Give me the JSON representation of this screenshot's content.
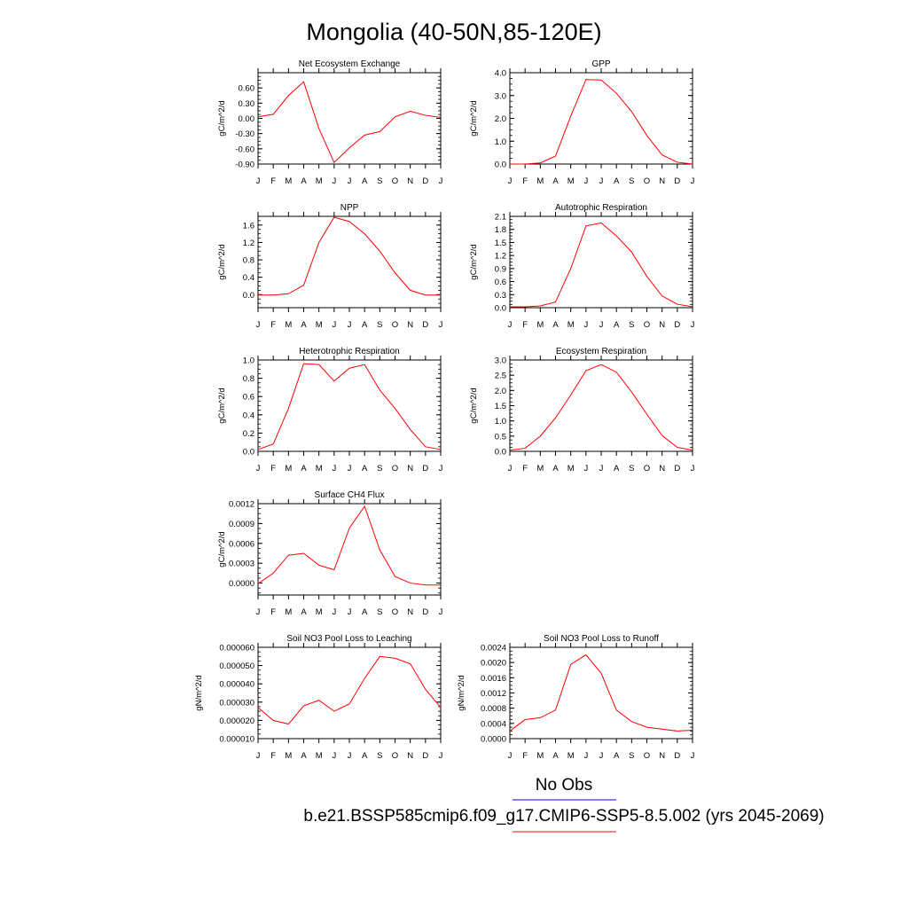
{
  "page_title": "Mongolia (40-50N,85-120E)",
  "legend": {
    "obs_label": "No Obs",
    "obs_color": "#0000ff",
    "model_label": "b.e21.BSSP585cmip6.f09_g17.CMIP6-SSP5-8.5.002 (yrs 2045-2069)",
    "model_color": "#ff0000"
  },
  "month_labels": [
    "J",
    "F",
    "M",
    "A",
    "M",
    "J",
    "J",
    "A",
    "S",
    "O",
    "N",
    "D",
    "J"
  ],
  "chart_data": [
    {
      "type": "line",
      "title": "Net Ecosystem Exchange",
      "ylabel": "gC/m^2/d",
      "ylim": [
        -0.9,
        0.9
      ],
      "yticks": [
        "-0.90",
        "-0.60",
        "-0.30",
        "0.00",
        "0.30",
        "0.60"
      ],
      "ytick_values": [
        -0.9,
        -0.6,
        -0.3,
        0.0,
        0.3,
        0.6
      ],
      "x": [
        "J",
        "F",
        "M",
        "A",
        "M",
        "J",
        "J",
        "A",
        "S",
        "O",
        "N",
        "D",
        "J"
      ],
      "series": [
        {
          "values": [
            0.03,
            0.08,
            0.45,
            0.72,
            -0.2,
            -0.87,
            -0.58,
            -0.33,
            -0.26,
            0.03,
            0.14,
            0.06,
            0.02
          ]
        }
      ]
    },
    {
      "type": "line",
      "title": "GPP",
      "ylabel": "gC/m^2/d",
      "ylim": [
        0,
        4.0
      ],
      "yticks": [
        "0.0",
        "1.0",
        "2.0",
        "3.0",
        "4.0"
      ],
      "ytick_values": [
        0,
        1,
        2,
        3,
        4
      ],
      "x": [
        "J",
        "F",
        "M",
        "A",
        "M",
        "J",
        "J",
        "A",
        "S",
        "O",
        "N",
        "D",
        "J"
      ],
      "series": [
        {
          "values": [
            0.0,
            0.0,
            0.05,
            0.35,
            2.1,
            3.7,
            3.68,
            3.1,
            2.3,
            1.25,
            0.4,
            0.08,
            0.0
          ]
        }
      ]
    },
    {
      "type": "line",
      "title": "NPP",
      "ylabel": "gC/m^2/d",
      "ylim": [
        -0.3,
        1.8
      ],
      "yticks": [
        "0.0",
        "0.4",
        "0.8",
        "1.2",
        "1.6"
      ],
      "ytick_values": [
        0.0,
        0.4,
        0.8,
        1.2,
        1.6
      ],
      "x": [
        "J",
        "F",
        "M",
        "A",
        "M",
        "J",
        "J",
        "A",
        "S",
        "O",
        "N",
        "D",
        "J"
      ],
      "series": [
        {
          "values": [
            -0.01,
            -0.01,
            0.02,
            0.22,
            1.2,
            1.78,
            1.68,
            1.4,
            1.0,
            0.5,
            0.1,
            -0.01,
            -0.01
          ]
        }
      ]
    },
    {
      "type": "line",
      "title": "Autotrophic Respiration",
      "ylabel": "gC/m^2/d",
      "ylim": [
        0,
        2.1
      ],
      "yticks": [
        "0.0",
        "0.3",
        "0.6",
        "0.9",
        "1.2",
        "1.5",
        "1.8",
        "2.1"
      ],
      "ytick_values": [
        0,
        0.3,
        0.6,
        0.9,
        1.2,
        1.5,
        1.8,
        2.1
      ],
      "x": [
        "J",
        "F",
        "M",
        "A",
        "M",
        "J",
        "J",
        "A",
        "S",
        "O",
        "N",
        "D",
        "J"
      ],
      "series": [
        {
          "values": [
            0.02,
            0.02,
            0.04,
            0.13,
            0.9,
            1.88,
            1.95,
            1.65,
            1.28,
            0.72,
            0.27,
            0.08,
            0.02
          ]
        }
      ]
    },
    {
      "type": "line",
      "title": "Heterotrophic Respiration",
      "ylabel": "gC/m^2/d",
      "ylim": [
        0,
        1.0
      ],
      "yticks": [
        "0.0",
        "0.2",
        "0.4",
        "0.6",
        "0.8",
        "1.0"
      ],
      "ytick_values": [
        0,
        0.2,
        0.4,
        0.6,
        0.8,
        1.0
      ],
      "x": [
        "J",
        "F",
        "M",
        "A",
        "M",
        "J",
        "J",
        "A",
        "S",
        "O",
        "N",
        "D",
        "J"
      ],
      "series": [
        {
          "values": [
            0.02,
            0.08,
            0.47,
            0.96,
            0.95,
            0.77,
            0.91,
            0.95,
            0.67,
            0.47,
            0.24,
            0.05,
            0.02
          ]
        }
      ]
    },
    {
      "type": "line",
      "title": "Ecosystem Respiration",
      "ylabel": "gC/m^2/d",
      "ylim": [
        0,
        3.0
      ],
      "yticks": [
        "0.0",
        "0.5",
        "1.0",
        "1.5",
        "2.0",
        "2.5",
        "3.0"
      ],
      "ytick_values": [
        0,
        0.5,
        1.0,
        1.5,
        2.0,
        2.5,
        3.0
      ],
      "x": [
        "J",
        "F",
        "M",
        "A",
        "M",
        "J",
        "J",
        "A",
        "S",
        "O",
        "N",
        "D",
        "J"
      ],
      "series": [
        {
          "values": [
            0.04,
            0.1,
            0.5,
            1.1,
            1.85,
            2.65,
            2.85,
            2.6,
            1.95,
            1.22,
            0.52,
            0.13,
            0.04
          ]
        }
      ]
    },
    {
      "type": "line",
      "title": "Surface CH4 Flux",
      "ylabel": "gC/m^2/d",
      "ylim": [
        -0.00018,
        0.0012
      ],
      "yticks": [
        "0.0000",
        "0.0003",
        "0.0006",
        "0.0009",
        "0.0012"
      ],
      "ytick_values": [
        0,
        0.0003,
        0.0006,
        0.0009,
        0.0012
      ],
      "x": [
        "J",
        "F",
        "M",
        "A",
        "M",
        "J",
        "J",
        "A",
        "S",
        "O",
        "N",
        "D",
        "J"
      ],
      "series": [
        {
          "values": [
            -1e-05,
            0.00015,
            0.00042,
            0.00045,
            0.00027,
            0.0002,
            0.00083,
            0.00116,
            0.0005,
            0.0001,
            0.0,
            -3e-05,
            -3e-05
          ]
        }
      ]
    },
    {
      "type": "line",
      "title": "Soil NO3 Pool Loss to Leaching",
      "ylabel": "gN/m^2/d",
      "ylim": [
        1e-05,
        6e-05
      ],
      "yticks": [
        "0.000010",
        "0.000020",
        "0.000030",
        "0.000040",
        "0.000050",
        "0.000060"
      ],
      "ytick_values": [
        1e-05,
        2e-05,
        3e-05,
        4e-05,
        5e-05,
        6e-05
      ],
      "x": [
        "J",
        "F",
        "M",
        "A",
        "M",
        "J",
        "J",
        "A",
        "S",
        "O",
        "N",
        "D",
        "J"
      ],
      "series": [
        {
          "values": [
            2.7e-05,
            2e-05,
            1.8e-05,
            2.8e-05,
            3.1e-05,
            2.5e-05,
            2.9e-05,
            4.3e-05,
            5.5e-05,
            5.4e-05,
            5.1e-05,
            3.7e-05,
            2.7e-05
          ]
        }
      ]
    },
    {
      "type": "line",
      "title": "Soil NO3 Pool Loss to Runoff",
      "ylabel": "gN/m^2/d",
      "ylim": [
        0,
        0.0024
      ],
      "yticks": [
        "0.0000",
        "0.0004",
        "0.0008",
        "0.0012",
        "0.0016",
        "0.0020",
        "0.0024"
      ],
      "ytick_values": [
        0,
        0.0004,
        0.0008,
        0.0012,
        0.0016,
        0.002,
        0.0024
      ],
      "x": [
        "J",
        "F",
        "M",
        "A",
        "M",
        "J",
        "J",
        "A",
        "S",
        "O",
        "N",
        "D",
        "J"
      ],
      "series": [
        {
          "values": [
            0.0002,
            0.0005,
            0.00055,
            0.00075,
            0.00195,
            0.0022,
            0.00172,
            0.00075,
            0.00045,
            0.0003,
            0.00025,
            0.0002,
            0.00022
          ]
        }
      ]
    }
  ]
}
